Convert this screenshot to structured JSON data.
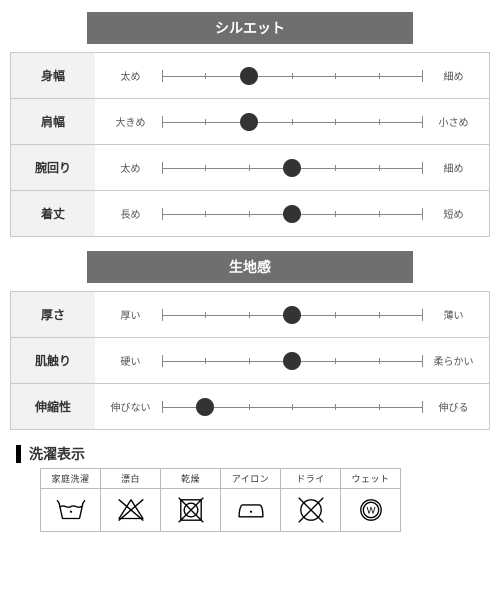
{
  "colors": {
    "header_bg": "#6f6f6f",
    "header_text": "#ffffff",
    "border": "#c9c9c9",
    "label_bg": "#f2f2f2",
    "slider_line": "#888888",
    "slider_knob": "#333333",
    "text": "#333333",
    "end_label": "#555555"
  },
  "slider": {
    "ticks": 7,
    "knob_diameter": 18
  },
  "sections": [
    {
      "title": "シルエット",
      "rows": [
        {
          "label": "身幅",
          "left": "太め",
          "right": "細め",
          "value": 2
        },
        {
          "label": "肩幅",
          "left": "大きめ",
          "right": "小さめ",
          "value": 2
        },
        {
          "label": "腕回り",
          "left": "太め",
          "right": "細め",
          "value": 3
        },
        {
          "label": "着丈",
          "left": "長め",
          "right": "短め",
          "value": 3
        }
      ]
    },
    {
      "title": "生地感",
      "rows": [
        {
          "label": "厚さ",
          "left": "厚い",
          "right": "薄い",
          "value": 3
        },
        {
          "label": "肌触り",
          "left": "硬い",
          "right": "柔らかい",
          "value": 3
        },
        {
          "label": "伸縮性",
          "left": "伸びない",
          "right": "伸びる",
          "value": 1
        }
      ]
    }
  ],
  "care": {
    "title": "洗濯表示",
    "items": [
      {
        "label": "家庭洗濯",
        "icon": "wash"
      },
      {
        "label": "漂白",
        "icon": "bleach-no"
      },
      {
        "label": "乾燥",
        "icon": "tumble-no"
      },
      {
        "label": "アイロン",
        "icon": "iron"
      },
      {
        "label": "ドライ",
        "icon": "dryclean-no"
      },
      {
        "label": "ウェット",
        "icon": "wetclean"
      }
    ]
  }
}
